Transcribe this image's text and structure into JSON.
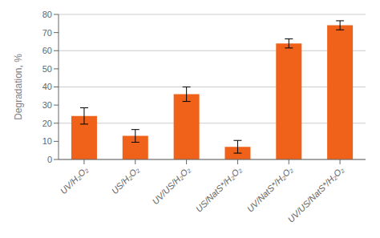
{
  "chart_data": {
    "type": "bar",
    "categories": [
      "UV/H₂O₂",
      "US/H₂O₂",
      "UV/US/H₂O₂",
      "US/NatS*/H₂O₂",
      "UV/NatS*/H₂O₂",
      "UV/US/NatS*/H₂O₂"
    ],
    "values": [
      24.0,
      13.0,
      36.0,
      7.0,
      64.0,
      74.0
    ],
    "errors": [
      4.5,
      3.5,
      4.0,
      3.5,
      2.5,
      2.5
    ],
    "color": "#F0621A",
    "ylabel": "Degradation, %",
    "ylim": [
      0,
      80
    ],
    "yticks": [
      0,
      10,
      20,
      30,
      40,
      50,
      60,
      70,
      80
    ],
    "grid": true
  }
}
